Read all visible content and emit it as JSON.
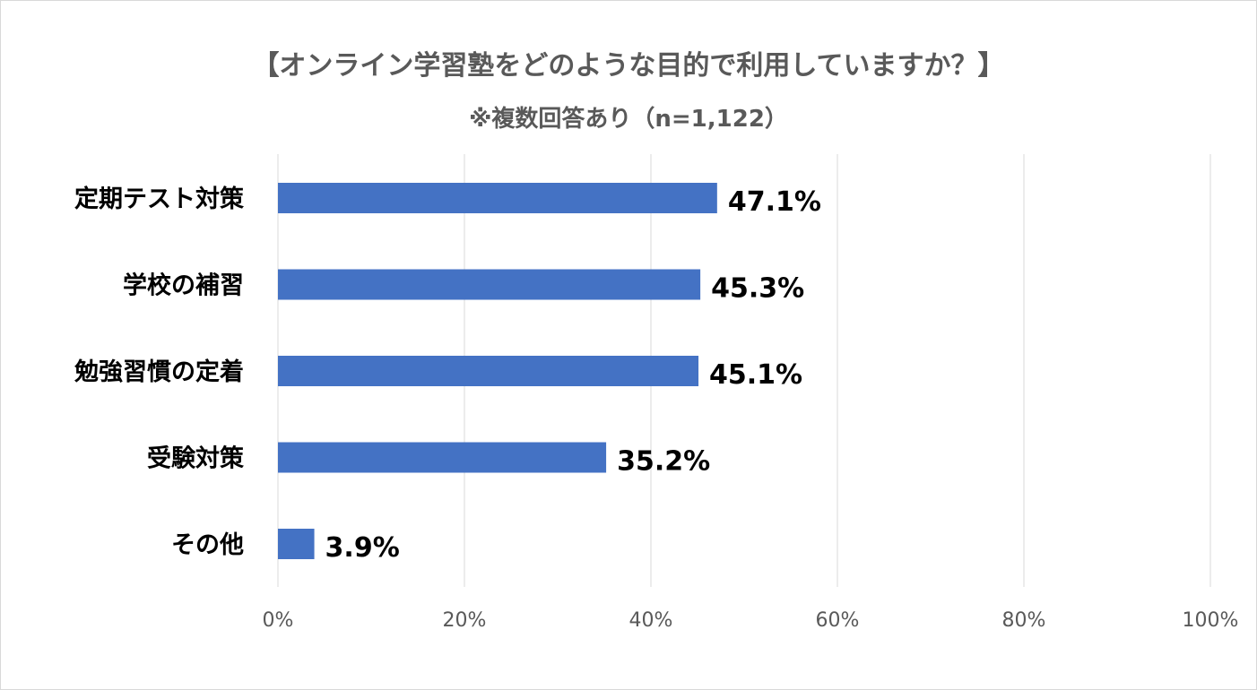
{
  "chart_data": {
    "type": "bar",
    "orientation": "horizontal",
    "title": "【オンライン学習塾をどのような目的で利用していますか？】",
    "subtitle": "※複数回答あり（n=1,122）",
    "categories": [
      "定期テスト対策",
      "学校の補習",
      "勉強習慣の定着",
      "受験対策",
      "その他"
    ],
    "values": [
      47.1,
      45.3,
      45.1,
      35.2,
      3.9
    ],
    "value_labels": [
      "47.1%",
      "45.3%",
      "45.1%",
      "35.2%",
      "3.9%"
    ],
    "xlim": [
      0,
      100
    ],
    "ticks": [
      0,
      20,
      40,
      60,
      80,
      100
    ],
    "tick_labels": [
      "0%",
      "20%",
      "40%",
      "60%",
      "80%",
      "100%"
    ],
    "grid": true,
    "legend": "none",
    "bar_color": "#4472c4",
    "grid_color": "#d9d9d9"
  }
}
